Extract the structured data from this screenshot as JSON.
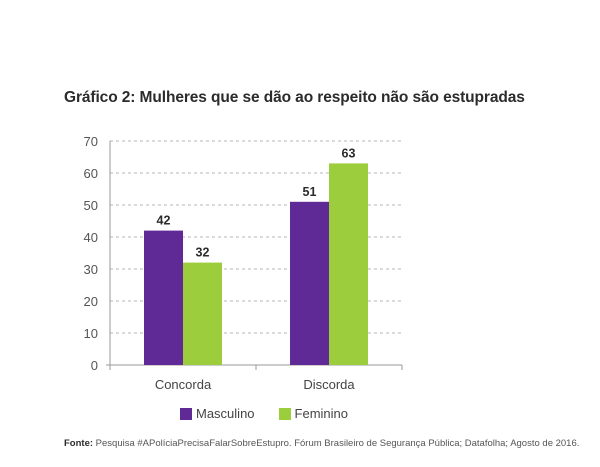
{
  "chart_data": {
    "type": "bar",
    "title": "Gráfico 2: Mulheres que se dão ao respeito não são estupradas",
    "categories": [
      "Concorda",
      "Discorda"
    ],
    "series": [
      {
        "name": "Masculino",
        "values": [
          42,
          51
        ],
        "color": "#5f2a96"
      },
      {
        "name": "Feminino",
        "values": [
          32,
          63
        ],
        "color": "#9ccd3c"
      }
    ],
    "xlabel": "",
    "ylabel": "",
    "ylim": [
      0,
      70
    ],
    "yticks": [
      0,
      10,
      20,
      30,
      40,
      50,
      60,
      70
    ],
    "ytick_labels": [
      "0",
      "10",
      "20",
      "30",
      "40",
      "50",
      "60",
      "70"
    ],
    "grid": true,
    "grid_style": "dashed",
    "data_labels": true,
    "legend_position": "bottom"
  },
  "legend": {
    "items": [
      {
        "label": "Masculino",
        "color": "#5f2a96"
      },
      {
        "label": "Feminino",
        "color": "#9ccd3c"
      }
    ]
  },
  "source": {
    "label": "Fonte:",
    "text": " Pesquisa #APolíciaPrecisaFalarSobreEstupro. Fórum Brasileiro de Segurança Pública; Datafolha; Agosto de 2016."
  }
}
